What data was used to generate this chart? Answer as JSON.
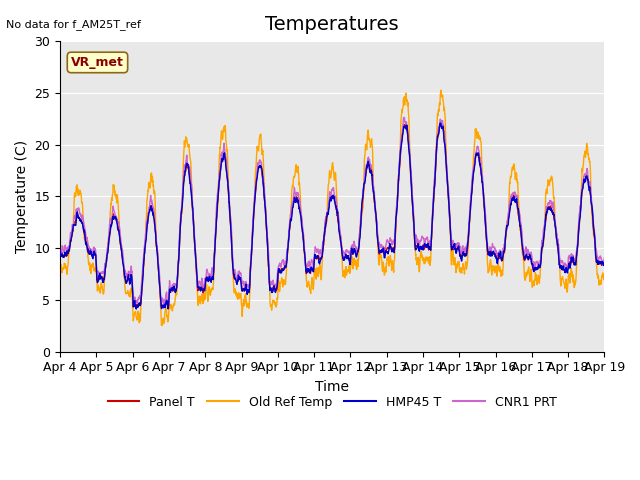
{
  "title": "Temperatures",
  "xlabel": "Time",
  "ylabel": "Temperature (C)",
  "ylim": [
    0,
    30
  ],
  "xlim": [
    0,
    15
  ],
  "note": "No data for f_AM25T_ref",
  "vr_label": "VR_met",
  "xtick_labels": [
    "Apr 4",
    "Apr 5",
    "Apr 6",
    "Apr 7",
    "Apr 8",
    "Apr 9",
    "Apr 10",
    "Apr 11",
    "Apr 12",
    "Apr 13",
    "Apr 14",
    "Apr 15",
    "Apr 16",
    "Apr 17",
    "Apr 18",
    "Apr 19"
  ],
  "ytick_labels": [
    "0",
    "5",
    "10",
    "15",
    "20",
    "25",
    "30"
  ],
  "legend": [
    "Panel T",
    "Old Ref Temp",
    "HMP45 T",
    "CNR1 PRT"
  ],
  "colors": {
    "panel_t": "#cc0000",
    "old_ref": "#ffa500",
    "hmp45": "#0000cc",
    "cnr1": "#cc66cc"
  },
  "background_color": "#e8e8e8",
  "title_fontsize": 14,
  "axis_fontsize": 10,
  "tick_fontsize": 9
}
